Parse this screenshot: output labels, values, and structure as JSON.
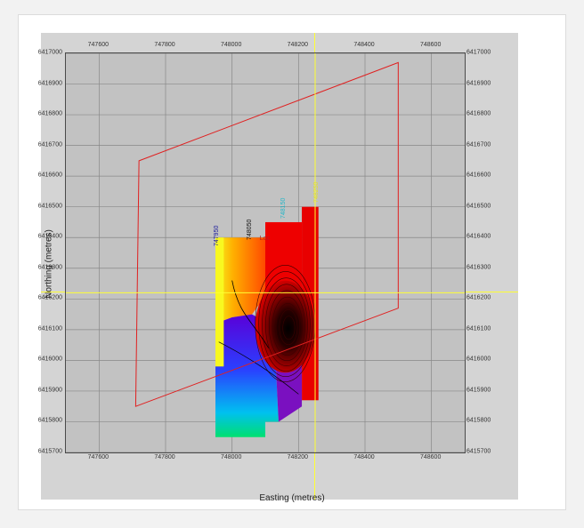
{
  "axes": {
    "xlabel": "Easting (metres)",
    "ylabel": "Northing (metres)",
    "xlim": [
      747500,
      748700
    ],
    "ylim": [
      6415700,
      6417000
    ],
    "x_ticks": [
      "747600",
      "747800",
      "748000",
      "748200",
      "748400",
      "748600"
    ],
    "y_ticks": [
      "6417000",
      "6416900",
      "6416800",
      "6416700",
      "6416600",
      "6416500",
      "6416400",
      "6416300",
      "6416200",
      "6416100",
      "6416000",
      "6415900",
      "6415800",
      "6415700"
    ]
  },
  "line_labels": [
    {
      "text": "747950",
      "color": "#1c1c9c"
    },
    {
      "text": "748050",
      "color": "#111111"
    },
    {
      "text": "Loc",
      "color": "#b02020"
    },
    {
      "text": "748150",
      "color": "#26b7c8"
    },
    {
      "text": "748250",
      "color": "#e0e030"
    }
  ],
  "crosshair": {
    "easting": 748250,
    "northing": 6416220,
    "color": "#ffff33"
  },
  "survey_outline": {
    "color": "#e02020",
    "points": [
      [
        747720,
        6416650
      ],
      [
        748500,
        6416970
      ],
      [
        748500,
        6416170
      ],
      [
        747710,
        6415850
      ]
    ]
  },
  "colors": {
    "plot_bg": "#c2c2c2",
    "grid": "#888888",
    "frame": "#d4d4d4",
    "borehole_marker": "#1e1e60"
  },
  "boreholes": [
    {
      "x": 747950,
      "y": 6416350,
      "symbol": "✕"
    },
    {
      "x": 747950,
      "y": 6416300,
      "symbol": "✕"
    },
    {
      "x": 747950,
      "y": 6416250,
      "symbol": "✕"
    },
    {
      "x": 747950,
      "y": 6416000,
      "symbol": "✕"
    },
    {
      "x": 747950,
      "y": 6415900,
      "symbol": "✕"
    },
    {
      "x": 747950,
      "y": 6415850,
      "symbol": "✕"
    },
    {
      "x": 747950,
      "y": 6415800,
      "symbol": "✕"
    },
    {
      "x": 747950,
      "y": 6415750,
      "symbol": "✕"
    },
    {
      "x": 748050,
      "y": 6416390,
      "symbol": "✕"
    },
    {
      "x": 748050,
      "y": 6416350,
      "symbol": "✕"
    },
    {
      "x": 748050,
      "y": 6416000,
      "symbol": "✕"
    },
    {
      "x": 748050,
      "y": 6415880,
      "symbol": "✕"
    },
    {
      "x": 748050,
      "y": 6415840,
      "symbol": "✕"
    },
    {
      "x": 748050,
      "y": 6415790,
      "symbol": "✕"
    },
    {
      "x": 748150,
      "y": 6416430,
      "symbol": "✕"
    },
    {
      "x": 748150,
      "y": 6416380,
      "symbol": "✕"
    },
    {
      "x": 748150,
      "y": 6416330,
      "symbol": "✕"
    },
    {
      "x": 748150,
      "y": 6416280,
      "symbol": "✕"
    },
    {
      "x": 748150,
      "y": 6415930,
      "symbol": "✕"
    },
    {
      "x": 748150,
      "y": 6415880,
      "symbol": "✕"
    },
    {
      "x": 748150,
      "y": 6415830,
      "symbol": "✕"
    },
    {
      "x": 748250,
      "y": 6416470,
      "symbol": "✕"
    },
    {
      "x": 748250,
      "y": 6416420,
      "symbol": "✕"
    },
    {
      "x": 748250,
      "y": 6416370,
      "symbol": "✕"
    },
    {
      "x": 748250,
      "y": 6416320,
      "symbol": "✕"
    },
    {
      "x": 748250,
      "y": 6416270,
      "symbol": "✕"
    },
    {
      "x": 748250,
      "y": 6416170,
      "symbol": "✕"
    },
    {
      "x": 748250,
      "y": 6416120,
      "symbol": "✕"
    },
    {
      "x": 748250,
      "y": 6416070,
      "symbol": "✕"
    },
    {
      "x": 748250,
      "y": 6416020,
      "symbol": "✕"
    },
    {
      "x": 748250,
      "y": 6415970,
      "symbol": "✕"
    },
    {
      "x": 748250,
      "y": 6415920,
      "symbol": "✕"
    },
    {
      "x": 748250,
      "y": 6415870,
      "symbol": "✕"
    }
  ]
}
